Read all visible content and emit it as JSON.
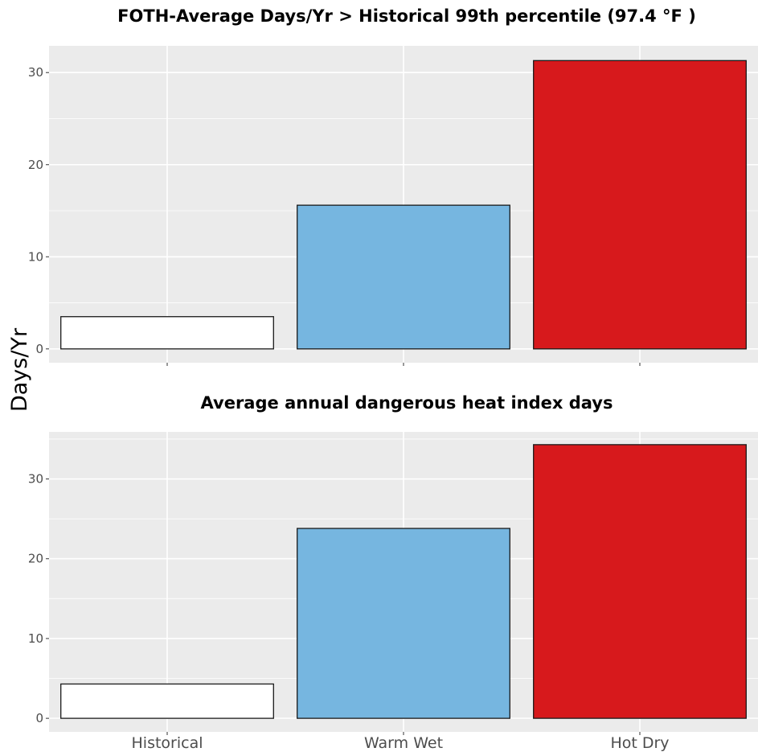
{
  "chart_data": [
    {
      "type": "bar",
      "title": "FOTH-Average Days/Yr > Historical 99th percentile (97.4 °F )",
      "categories": [
        "Historical",
        "Warm Wet",
        "Hot Dry"
      ],
      "values": [
        3.5,
        15.6,
        31.3
      ],
      "colors": [
        "#ffffff",
        "#76b6e0",
        "#d7191c"
      ],
      "ylim": [
        -1.5,
        32.9
      ],
      "yticks": [
        0,
        10,
        20,
        30
      ],
      "ylabel": "Days/Yr",
      "show_x_tick_labels": false
    },
    {
      "type": "bar",
      "title": "Average annual dangerous heat index days",
      "categories": [
        "Historical",
        "Warm Wet",
        "Hot Dry"
      ],
      "values": [
        4.3,
        23.8,
        34.3
      ],
      "colors": [
        "#ffffff",
        "#76b6e0",
        "#d7191c"
      ],
      "ylim": [
        -1.7,
        35.9
      ],
      "yticks": [
        0,
        10,
        20,
        30
      ],
      "ylabel": "Days/Yr",
      "show_x_tick_labels": true
    }
  ],
  "shared_ylabel": "Days/Yr",
  "style": {
    "panel_background": "#ebebeb",
    "grid_color": "#ffffff",
    "bar_outline": "#1a1a1a",
    "tick_label_color": "#4d4d4d"
  }
}
